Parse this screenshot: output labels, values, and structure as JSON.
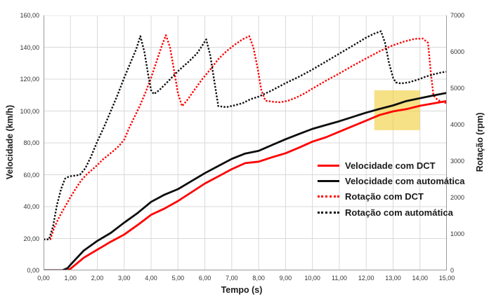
{
  "chart_data": {
    "type": "line",
    "title": "",
    "xlabel": "Tempo (s)",
    "ylabel_left": "Velocidade (km/h)",
    "ylabel_right": "Rotação (rpm)",
    "x_range": [
      0,
      15
    ],
    "y_left_range": [
      0,
      160
    ],
    "y_right_range": [
      0,
      7000
    ],
    "grid": true,
    "x_tick_labels": [
      "0,00",
      "1,00",
      "2,00",
      "3,00",
      "4,00",
      "5,00",
      "6,00",
      "7,00",
      "8,00",
      "9,00",
      "10,00",
      "11,00",
      "12,00",
      "13,00",
      "14,00",
      "15,00"
    ],
    "y_left_tick_labels": [
      "0,00",
      "20,00",
      "40,00",
      "60,00",
      "80,00",
      "100,00",
      "120,00",
      "140,00",
      "160,00"
    ],
    "y_right_tick_labels": [
      "0",
      "1000",
      "2000",
      "3000",
      "4000",
      "5000",
      "6000",
      "7000"
    ],
    "colors": {
      "red": "#fe0000",
      "black": "#0d0d0d",
      "grid": "#d9d9d9",
      "axis": "#9b9b9b",
      "highlight": "#f2cf3c"
    },
    "highlight_region": {
      "comment": "yellow box",
      "t0": 12.3,
      "t1": 14.0,
      "v0_kmh": 88,
      "v1_kmh": 113
    },
    "legend_position": "inside-right-middle",
    "series": [
      {
        "name": "velocidade-dct",
        "label": "Velocidade com DCT",
        "axis": "left",
        "unit": "km/h",
        "color": "#fe0000",
        "style": "solid",
        "points": [
          [
            0,
            0
          ],
          [
            0.9,
            0
          ],
          [
            1,
            1
          ],
          [
            1.25,
            4.5
          ],
          [
            1.5,
            8
          ],
          [
            1.75,
            10.5
          ],
          [
            2,
            13
          ],
          [
            2.5,
            18
          ],
          [
            3,
            22.5
          ],
          [
            3.5,
            28.5
          ],
          [
            4,
            34.9
          ],
          [
            4.5,
            38.8
          ],
          [
            5,
            43.5
          ],
          [
            5.5,
            49
          ],
          [
            6,
            54.5
          ],
          [
            6.5,
            59
          ],
          [
            7,
            63.5
          ],
          [
            7.5,
            67.3
          ],
          [
            8,
            68.2
          ],
          [
            8.5,
            71
          ],
          [
            9,
            73.5
          ],
          [
            9.5,
            77
          ],
          [
            10,
            80.8
          ],
          [
            10.5,
            83.5
          ],
          [
            11,
            87
          ],
          [
            11.5,
            90.5
          ],
          [
            12,
            94
          ],
          [
            12.5,
            97.5
          ],
          [
            13,
            99.8
          ],
          [
            13.5,
            101.2
          ],
          [
            14,
            103.3
          ],
          [
            14.5,
            104.8
          ],
          [
            15,
            106.3
          ]
        ]
      },
      {
        "name": "velocidade-automatica",
        "label": "Velocidade com automática",
        "axis": "left",
        "unit": "km/h",
        "color": "#0d0d0d",
        "style": "solid",
        "points": [
          [
            0,
            0
          ],
          [
            0.7,
            0
          ],
          [
            0.9,
            1.5
          ],
          [
            1,
            3.5
          ],
          [
            1.25,
            8
          ],
          [
            1.5,
            12.5
          ],
          [
            1.75,
            15.5
          ],
          [
            2,
            18.5
          ],
          [
            2.5,
            23.5
          ],
          [
            3,
            30
          ],
          [
            3.5,
            36
          ],
          [
            4,
            43
          ],
          [
            4.5,
            47.5
          ],
          [
            5,
            51
          ],
          [
            5.5,
            56
          ],
          [
            6,
            61
          ],
          [
            6.5,
            65.5
          ],
          [
            7,
            70
          ],
          [
            7.5,
            73.3
          ],
          [
            8,
            75
          ],
          [
            8.5,
            78.7
          ],
          [
            9,
            82.3
          ],
          [
            9.5,
            85.6
          ],
          [
            10,
            88.8
          ],
          [
            10.5,
            91.2
          ],
          [
            11,
            93.6
          ],
          [
            11.5,
            96.3
          ],
          [
            12,
            99
          ],
          [
            12.5,
            101.3
          ],
          [
            13,
            103.5
          ],
          [
            13.5,
            106.3
          ],
          [
            14,
            108
          ],
          [
            14.5,
            109.8
          ],
          [
            15,
            111.4
          ]
        ]
      },
      {
        "name": "rotacao-dct",
        "label": "Rotação com DCT",
        "axis": "right",
        "unit": "rpm",
        "color": "#fe0000",
        "style": "dotted",
        "points": [
          [
            0,
            850
          ],
          [
            0.25,
            850
          ],
          [
            0.4,
            1180
          ],
          [
            0.6,
            1490
          ],
          [
            0.8,
            1750
          ],
          [
            1,
            2010
          ],
          [
            1.2,
            2250
          ],
          [
            1.4,
            2470
          ],
          [
            1.6,
            2630
          ],
          [
            1.8,
            2760
          ],
          [
            2,
            2890
          ],
          [
            2.2,
            3040
          ],
          [
            2.4,
            3160
          ],
          [
            2.6,
            3280
          ],
          [
            2.8,
            3410
          ],
          [
            3,
            3590
          ],
          [
            3.2,
            3940
          ],
          [
            3.4,
            4240
          ],
          [
            3.6,
            4550
          ],
          [
            3.8,
            4900
          ],
          [
            4,
            5290
          ],
          [
            4.2,
            5730
          ],
          [
            4.4,
            6170
          ],
          [
            4.55,
            6455
          ],
          [
            4.7,
            6130
          ],
          [
            4.85,
            5510
          ],
          [
            5,
            4860
          ],
          [
            5.15,
            4510
          ],
          [
            5.35,
            4680
          ],
          [
            5.6,
            4945
          ],
          [
            5.9,
            5250
          ],
          [
            6.2,
            5515
          ],
          [
            6.5,
            5800
          ],
          [
            6.8,
            6015
          ],
          [
            7.1,
            6190
          ],
          [
            7.4,
            6345
          ],
          [
            7.65,
            6430
          ],
          [
            7.8,
            6130
          ],
          [
            7.95,
            5600
          ],
          [
            8.1,
            4945
          ],
          [
            8.25,
            4660
          ],
          [
            8.5,
            4630
          ],
          [
            8.8,
            4615
          ],
          [
            9.1,
            4660
          ],
          [
            9.4,
            4745
          ],
          [
            9.7,
            4855
          ],
          [
            10,
            4990
          ],
          [
            10.5,
            5205
          ],
          [
            11,
            5405
          ],
          [
            11.5,
            5620
          ],
          [
            12,
            5820
          ],
          [
            12.5,
            6015
          ],
          [
            13,
            6180
          ],
          [
            13.4,
            6280
          ],
          [
            13.8,
            6355
          ],
          [
            14.1,
            6365
          ],
          [
            14.3,
            6250
          ],
          [
            14.4,
            5470
          ],
          [
            14.5,
            4810
          ],
          [
            14.65,
            4680
          ],
          [
            14.85,
            4615
          ],
          [
            15,
            4595
          ]
        ]
      },
      {
        "name": "rotacao-automatica",
        "label": "Rotação com automática",
        "axis": "right",
        "unit": "rpm",
        "color": "#0d0d0d",
        "style": "dotted",
        "points": [
          [
            0,
            850
          ],
          [
            0.2,
            850
          ],
          [
            0.35,
            1200
          ],
          [
            0.5,
            1800
          ],
          [
            0.65,
            2230
          ],
          [
            0.8,
            2520
          ],
          [
            0.95,
            2580
          ],
          [
            1.15,
            2600
          ],
          [
            1.35,
            2625
          ],
          [
            1.55,
            2800
          ],
          [
            1.75,
            3100
          ],
          [
            2,
            3540
          ],
          [
            2.25,
            3940
          ],
          [
            2.5,
            4375
          ],
          [
            2.75,
            4810
          ],
          [
            3,
            5290
          ],
          [
            3.25,
            5730
          ],
          [
            3.45,
            6080
          ],
          [
            3.6,
            6430
          ],
          [
            3.75,
            6000
          ],
          [
            3.9,
            5340
          ],
          [
            4,
            4945
          ],
          [
            4.1,
            4840
          ],
          [
            4.3,
            4945
          ],
          [
            4.6,
            5165
          ],
          [
            5,
            5470
          ],
          [
            5.4,
            5730
          ],
          [
            5.7,
            5950
          ],
          [
            5.9,
            6170
          ],
          [
            6.05,
            6340
          ],
          [
            6.2,
            5900
          ],
          [
            6.35,
            5200
          ],
          [
            6.5,
            4510
          ],
          [
            6.8,
            4480
          ],
          [
            7.1,
            4530
          ],
          [
            7.4,
            4590
          ],
          [
            7.7,
            4700
          ],
          [
            8,
            4770
          ],
          [
            8.5,
            4945
          ],
          [
            9,
            5140
          ],
          [
            9.5,
            5315
          ],
          [
            10,
            5515
          ],
          [
            10.5,
            5730
          ],
          [
            11,
            5950
          ],
          [
            11.5,
            6170
          ],
          [
            12,
            6390
          ],
          [
            12.3,
            6500
          ],
          [
            12.55,
            6565
          ],
          [
            12.7,
            6250
          ],
          [
            12.85,
            5690
          ],
          [
            13,
            5290
          ],
          [
            13.1,
            5160
          ],
          [
            13.3,
            5130
          ],
          [
            13.6,
            5165
          ],
          [
            13.9,
            5230
          ],
          [
            14.2,
            5315
          ],
          [
            14.5,
            5380
          ],
          [
            14.8,
            5435
          ],
          [
            15,
            5455
          ]
        ]
      }
    ]
  }
}
